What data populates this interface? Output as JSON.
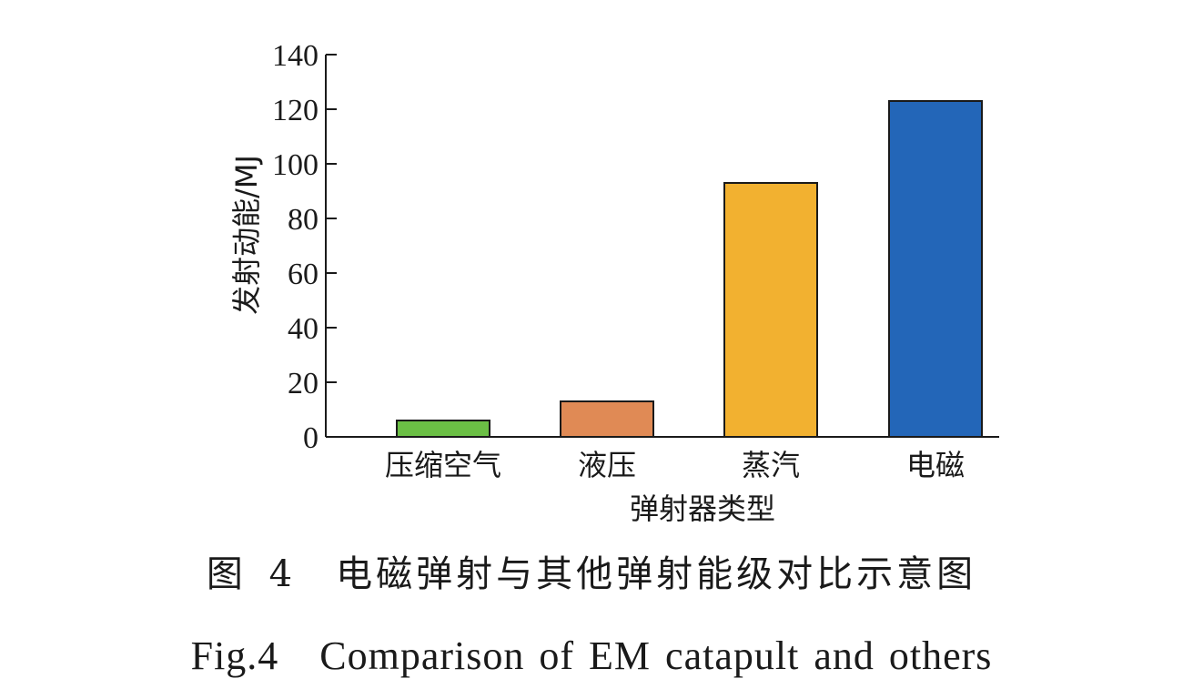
{
  "chart_data": {
    "type": "bar",
    "categories": [
      "压缩空气",
      "液压",
      "蒸汽",
      "电磁"
    ],
    "values": [
      6,
      13,
      93,
      123
    ],
    "colors": [
      "#6bbf45",
      "#e08a55",
      "#f2b130",
      "#2366b8"
    ],
    "xlabel": "弹射器类型",
    "ylabel": "发射动能/MJ",
    "ylim": [
      0,
      140
    ],
    "yticks": [
      0,
      20,
      40,
      60,
      80,
      100,
      120,
      140
    ],
    "grid": false
  },
  "captions": {
    "cn": "图 4　电磁弹射与其他弹射能级对比示意图",
    "en": "Fig.4　Comparison of EM catapult and others"
  }
}
